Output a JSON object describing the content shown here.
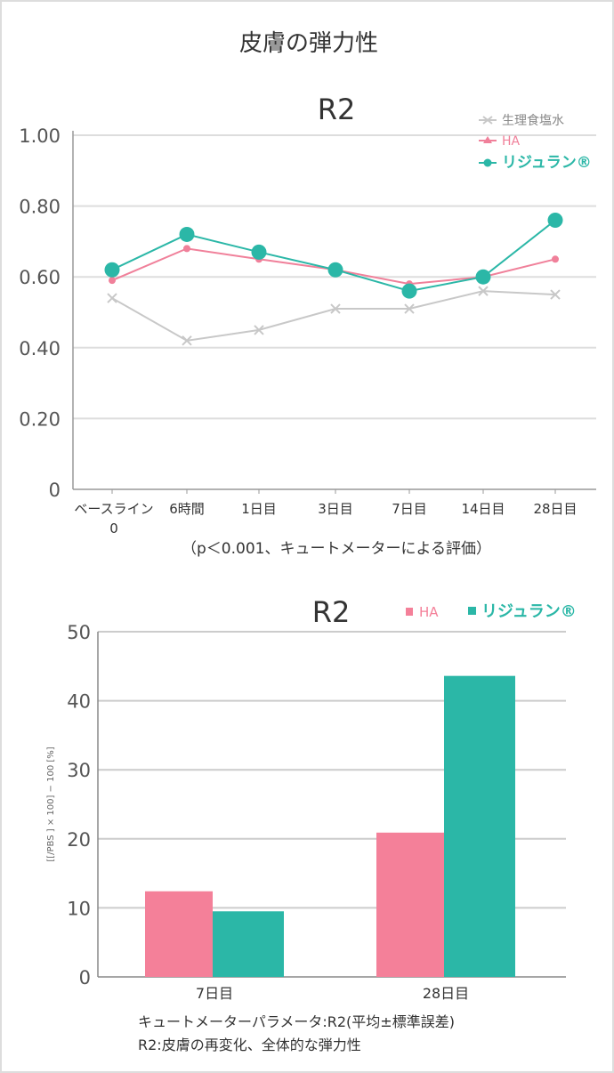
{
  "page_title": "皮膚の弾力性",
  "chart_data": [
    {
      "type": "line",
      "title": "R2",
      "categories": [
        "ベースライン\n0",
        "6時間",
        "1日目",
        "3日目",
        "7日目",
        "14日目",
        "28日目"
      ],
      "yticks": [
        "0",
        "0.20",
        "0.40",
        "0.60",
        "0.80",
        "1.00"
      ],
      "ylim": [
        0,
        1.0
      ],
      "grid": true,
      "legend_position": "top-right",
      "series": [
        {
          "name": "生理食塩水",
          "color": "#c8c8c8",
          "marker": "x",
          "values": [
            0.54,
            0.42,
            0.45,
            0.51,
            0.51,
            0.56,
            0.55
          ]
        },
        {
          "name": "HA",
          "color": "#f0809a",
          "marker": "dot-small",
          "values": [
            0.59,
            0.68,
            0.65,
            0.62,
            0.58,
            0.6,
            0.65
          ]
        },
        {
          "name": "リジュラン®",
          "color": "#2bb7a7",
          "marker": "dot-large",
          "values": [
            0.62,
            0.72,
            0.67,
            0.62,
            0.56,
            0.6,
            0.76
          ]
        }
      ],
      "note": "（p＜0.001、キュートメーターによる評価）"
    },
    {
      "type": "bar",
      "title": "R2",
      "categories": [
        "7日目",
        "28日目"
      ],
      "yticks": [
        "0",
        "10",
        "20",
        "30",
        "40",
        "50"
      ],
      "ylim": [
        0,
        50
      ],
      "ylabel": "[[/PBS ] × 100] − 100 [%]",
      "grid": true,
      "legend_position": "top-right",
      "series": [
        {
          "name": "HA",
          "color": "#f48099",
          "values": [
            12.4,
            20.9
          ]
        },
        {
          "name": "リジュラン®",
          "color": "#2bb7a7",
          "values": [
            9.5,
            43.6
          ]
        }
      ],
      "caption_lines": [
        "キュートメーターパラメータ:R2(平均±標準誤差)",
        "R2:皮膚の再変化、全体的な弾力性"
      ]
    }
  ]
}
